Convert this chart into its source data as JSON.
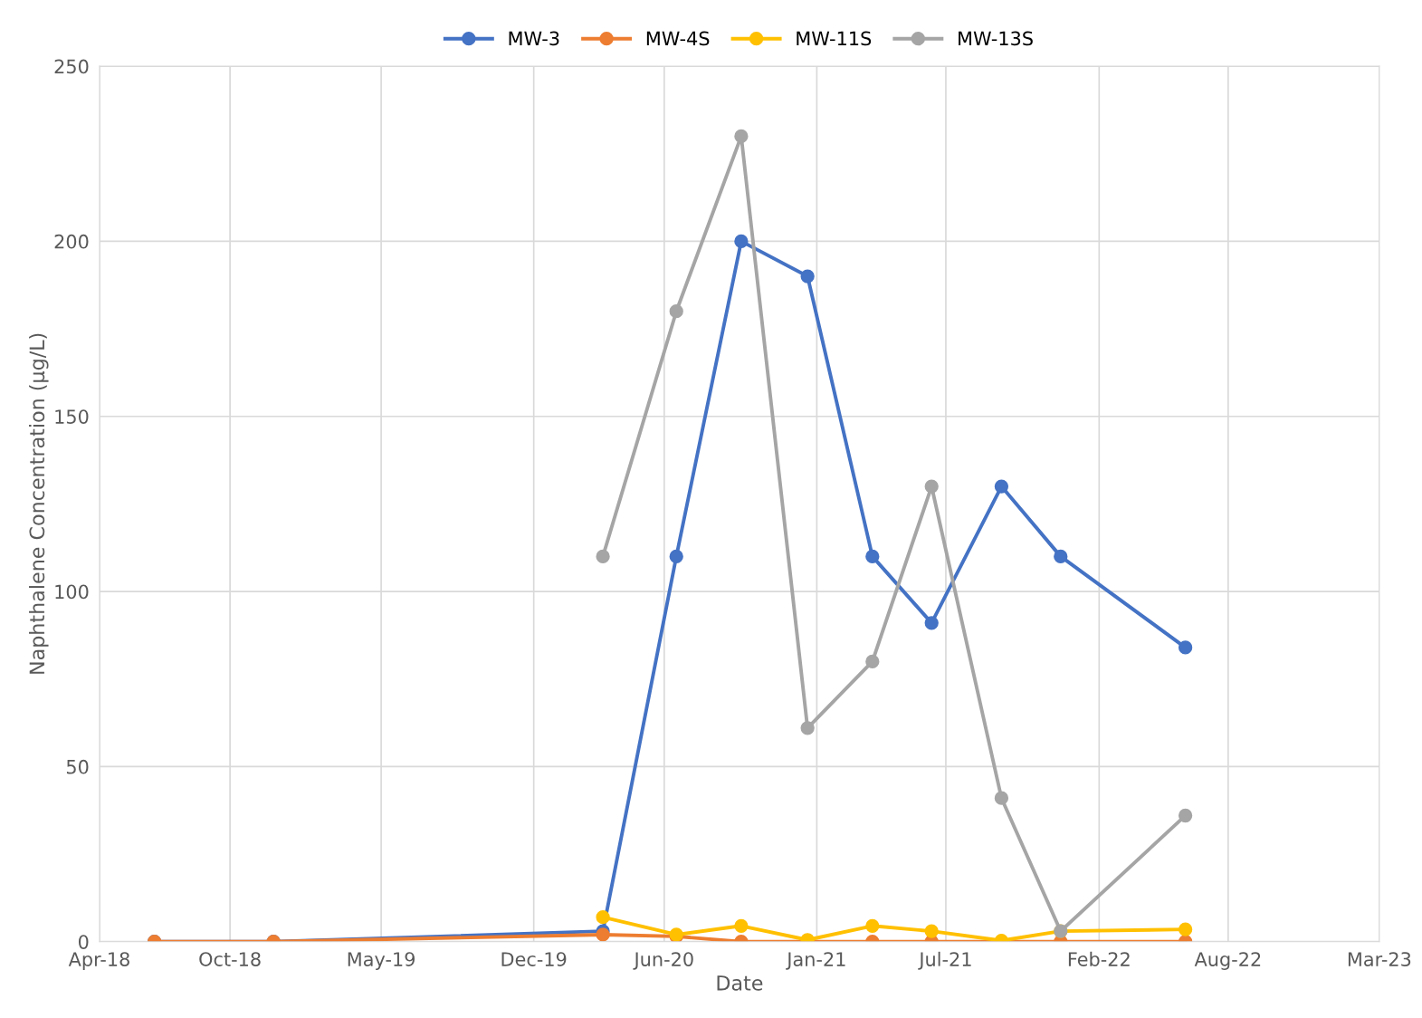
{
  "chart_data": {
    "type": "line",
    "xlabel": "Date",
    "ylabel": "Naphthalene Concentration (µg/L)",
    "series": [
      {
        "name": "MW-3",
        "color": "#4472c4",
        "x": [
          "2018-07-01",
          "2018-12-15",
          "2020-03-21",
          "2020-07-02",
          "2020-10-01",
          "2021-01-02",
          "2021-04-03",
          "2021-06-25",
          "2021-10-01",
          "2021-12-23",
          "2022-06-16"
        ],
        "values": [
          0,
          0,
          3,
          110,
          200,
          190,
          110,
          91,
          130,
          110,
          84
        ]
      },
      {
        "name": "MW-4S",
        "color": "#ed7d31",
        "x": [
          "2018-07-01",
          "2018-12-15",
          "2020-03-21",
          "2020-07-02",
          "2020-10-01",
          "2021-01-02",
          "2021-04-03",
          "2021-06-25",
          "2021-10-01",
          "2021-12-23",
          "2022-06-16"
        ],
        "values": [
          0,
          0,
          2,
          1.5,
          0,
          0,
          0,
          0,
          0,
          0,
          0
        ]
      },
      {
        "name": "MW-11S",
        "color": "#ffc000",
        "x": [
          "2020-03-21",
          "2020-07-02",
          "2020-10-01",
          "2021-01-02",
          "2021-04-03",
          "2021-06-25",
          "2021-10-01",
          "2021-12-23",
          "2022-06-16"
        ],
        "values": [
          7,
          2,
          4.5,
          0.5,
          4.5,
          3,
          0.3,
          3,
          3.5
        ]
      },
      {
        "name": "MW-13S",
        "color": "#a5a5a5",
        "x": [
          "2020-03-21",
          "2020-07-02",
          "2020-10-01",
          "2021-01-02",
          "2021-04-03",
          "2021-06-25",
          "2021-10-01",
          "2021-12-23",
          "2022-06-16"
        ],
        "values": [
          110,
          180,
          230,
          61,
          80,
          130,
          41,
          3,
          36
        ]
      }
    ],
    "xlim": [
      "2018-04-15",
      "2023-03-15"
    ],
    "xticks": [
      {
        "value": "2018-04-15",
        "label": "Apr-18"
      },
      {
        "value": "2018-10-15",
        "label": "Oct-18"
      },
      {
        "value": "2019-05-15",
        "label": "May-19"
      },
      {
        "value": "2019-12-15",
        "label": "Dec-19"
      },
      {
        "value": "2020-06-15",
        "label": "Jun-20"
      },
      {
        "value": "2021-01-15",
        "label": "Jan-21"
      },
      {
        "value": "2021-07-15",
        "label": "Jul-21"
      },
      {
        "value": "2022-02-15",
        "label": "Feb-22"
      },
      {
        "value": "2022-08-15",
        "label": "Aug-22"
      },
      {
        "value": "2023-03-15",
        "label": "Mar-23"
      }
    ],
    "ylim": [
      0,
      250
    ],
    "yticks": [
      0,
      50,
      100,
      150,
      200,
      250
    ],
    "grid": true,
    "legend": "top",
    "marker": "circle",
    "line_style": "solid"
  }
}
